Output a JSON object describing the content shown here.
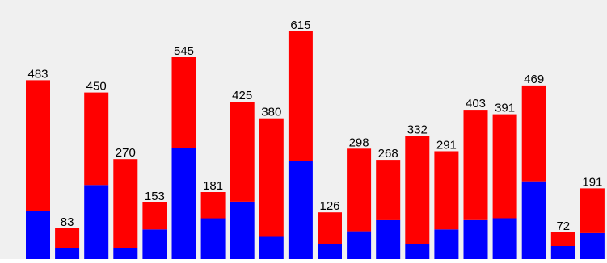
{
  "chart_data": {
    "type": "bar",
    "stacked": true,
    "categories": [
      "",
      "",
      "",
      "",
      "",
      "",
      "",
      "",
      "",
      "",
      "",
      "",
      "",
      "",
      "",
      "",
      "",
      "",
      "",
      ""
    ],
    "totals": [
      483,
      83,
      450,
      270,
      153,
      545,
      181,
      425,
      380,
      615,
      126,
      298,
      268,
      332,
      291,
      403,
      391,
      469,
      72,
      191
    ],
    "series": [
      {
        "color": "#0000ff",
        "values": [
          130,
          30,
          200,
          30,
          80,
          300,
          110,
          155,
          60,
          265,
          40,
          75,
          105,
          40,
          80,
          105,
          110,
          210,
          35,
          70
        ]
      },
      {
        "color": "#ff0000",
        "values": [
          353,
          53,
          250,
          240,
          73,
          245,
          71,
          270,
          320,
          350,
          86,
          223,
          163,
          292,
          211,
          298,
          281,
          259,
          37,
          121
        ]
      }
    ],
    "title": "",
    "xlabel": "",
    "ylabel": "",
    "ylim": [
      0,
      680
    ],
    "grid": false,
    "legend": false,
    "background_color": "#f0f0f0"
  }
}
